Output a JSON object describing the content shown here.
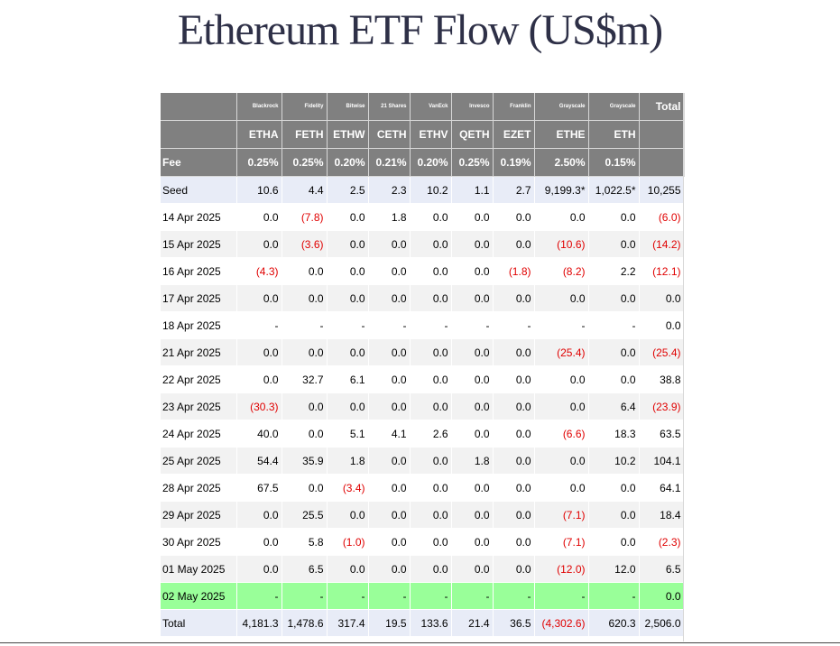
{
  "title": "Ethereum ETF Flow (US$m)",
  "header": {
    "issuers": [
      "",
      "Blackrock",
      "Fidelity",
      "Bitwise",
      "21 Shares",
      "VanEck",
      "Invesco",
      "Franklin",
      "Grayscale",
      "Grayscale",
      "Total"
    ],
    "tickers": [
      "",
      "ETHA",
      "FETH",
      "ETHW",
      "CETH",
      "ETHV",
      "QETH",
      "EZET",
      "ETHE",
      "ETH",
      ""
    ],
    "fees": [
      "Fee",
      "0.25%",
      "0.25%",
      "0.20%",
      "0.21%",
      "0.20%",
      "0.25%",
      "0.19%",
      "2.50%",
      "0.15%",
      ""
    ]
  },
  "rows": [
    {
      "style": "seed",
      "cells": [
        "Seed",
        "10.6",
        "4.4",
        "2.5",
        "2.3",
        "10.2",
        "1.1",
        "2.7",
        "9,199.3*",
        "1,022.5*",
        "10,255"
      ]
    },
    {
      "style": "white",
      "cells": [
        "14 Apr 2025",
        "0.0",
        "(7.8)",
        "0.0",
        "1.8",
        "0.0",
        "0.0",
        "0.0",
        "0.0",
        "0.0",
        "(6.0)"
      ]
    },
    {
      "style": "shade",
      "cells": [
        "15 Apr 2025",
        "0.0",
        "(3.6)",
        "0.0",
        "0.0",
        "0.0",
        "0.0",
        "0.0",
        "(10.6)",
        "0.0",
        "(14.2)"
      ]
    },
    {
      "style": "white",
      "cells": [
        "16 Apr 2025",
        "(4.3)",
        "0.0",
        "0.0",
        "0.0",
        "0.0",
        "0.0",
        "(1.8)",
        "(8.2)",
        "2.2",
        "(12.1)"
      ]
    },
    {
      "style": "shade",
      "cells": [
        "17 Apr 2025",
        "0.0",
        "0.0",
        "0.0",
        "0.0",
        "0.0",
        "0.0",
        "0.0",
        "0.0",
        "0.0",
        "0.0"
      ]
    },
    {
      "style": "white",
      "cells": [
        "18 Apr 2025",
        "-",
        "-",
        "-",
        "-",
        "-",
        "-",
        "-",
        "-",
        "-",
        "0.0"
      ]
    },
    {
      "style": "shade",
      "cells": [
        "21 Apr 2025",
        "0.0",
        "0.0",
        "0.0",
        "0.0",
        "0.0",
        "0.0",
        "0.0",
        "(25.4)",
        "0.0",
        "(25.4)"
      ]
    },
    {
      "style": "white",
      "cells": [
        "22 Apr 2025",
        "0.0",
        "32.7",
        "6.1",
        "0.0",
        "0.0",
        "0.0",
        "0.0",
        "0.0",
        "0.0",
        "38.8"
      ]
    },
    {
      "style": "shade",
      "cells": [
        "23 Apr 2025",
        "(30.3)",
        "0.0",
        "0.0",
        "0.0",
        "0.0",
        "0.0",
        "0.0",
        "0.0",
        "6.4",
        "(23.9)"
      ]
    },
    {
      "style": "white",
      "cells": [
        "24 Apr 2025",
        "40.0",
        "0.0",
        "5.1",
        "4.1",
        "2.6",
        "0.0",
        "0.0",
        "(6.6)",
        "18.3",
        "63.5"
      ]
    },
    {
      "style": "shade",
      "cells": [
        "25 Apr 2025",
        "54.4",
        "35.9",
        "1.8",
        "0.0",
        "0.0",
        "1.8",
        "0.0",
        "0.0",
        "10.2",
        "104.1"
      ]
    },
    {
      "style": "white",
      "cells": [
        "28 Apr 2025",
        "67.5",
        "0.0",
        "(3.4)",
        "0.0",
        "0.0",
        "0.0",
        "0.0",
        "0.0",
        "0.0",
        "64.1"
      ]
    },
    {
      "style": "shade",
      "cells": [
        "29 Apr 2025",
        "0.0",
        "25.5",
        "0.0",
        "0.0",
        "0.0",
        "0.0",
        "0.0",
        "(7.1)",
        "0.0",
        "18.4"
      ]
    },
    {
      "style": "white",
      "cells": [
        "30 Apr 2025",
        "0.0",
        "5.8",
        "(1.0)",
        "0.0",
        "0.0",
        "0.0",
        "0.0",
        "(7.1)",
        "0.0",
        "(2.3)"
      ]
    },
    {
      "style": "shade",
      "cells": [
        "01 May 2025",
        "0.0",
        "6.5",
        "0.0",
        "0.0",
        "0.0",
        "0.0",
        "0.0",
        "(12.0)",
        "12.0",
        "6.5"
      ]
    },
    {
      "style": "hl",
      "cells": [
        "02 May 2025",
        "-",
        "-",
        "-",
        "-",
        "-",
        "-",
        "-",
        "-",
        "-",
        "0.0"
      ]
    },
    {
      "style": "total",
      "cells": [
        "Total",
        "4,181.3",
        "1,478.6",
        "317.4",
        "19.5",
        "133.6",
        "21.4",
        "36.5",
        "(4,302.6)",
        "620.3",
        "2,506.0"
      ]
    }
  ],
  "colors": {
    "header_bg": "#808080",
    "header_text": "#ffffff",
    "negative": "#e00000",
    "highlight_row": "#99ff99",
    "seed_row": "#e8ecf7",
    "title": "#2e3047"
  }
}
